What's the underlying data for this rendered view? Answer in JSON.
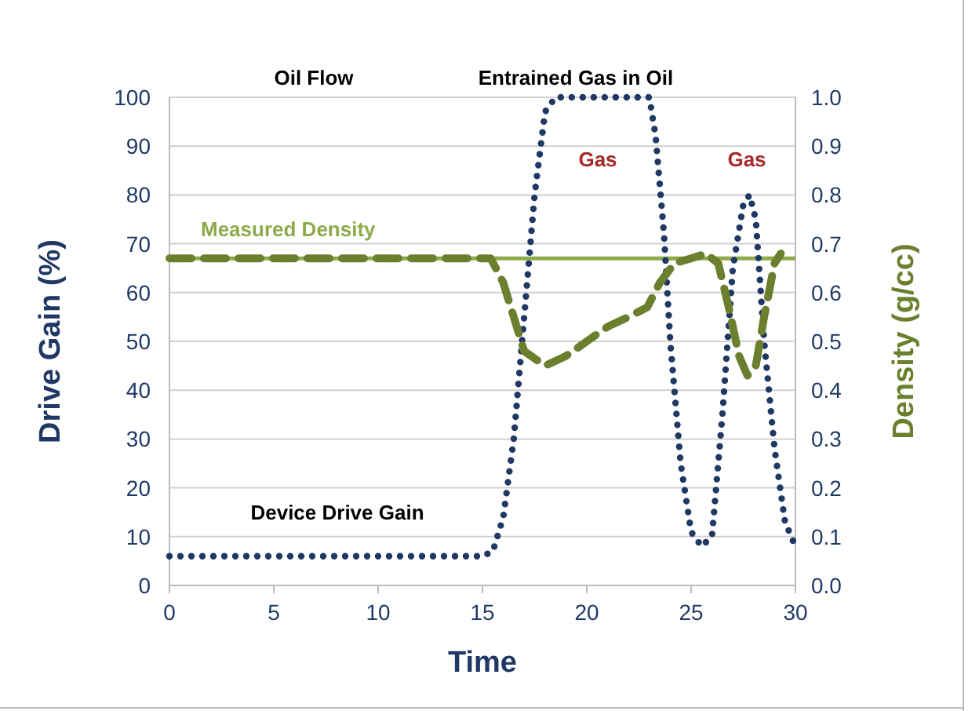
{
  "chart_data": {
    "type": "line",
    "xlabel": "Time",
    "ylabel": "Drive Gain (%)",
    "y2label": "Density (g/cc)",
    "xlim": [
      0,
      30
    ],
    "xticks": [
      0,
      5,
      10,
      15,
      20,
      25,
      30
    ],
    "ylim": [
      0,
      100
    ],
    "yticks": [
      0,
      10,
      20,
      30,
      40,
      50,
      60,
      70,
      80,
      90,
      100
    ],
    "y2lim": [
      0,
      1
    ],
    "y2ticks": [
      {
        "value": 0,
        "label": "0.0"
      },
      {
        "value": 0.1,
        "label": "0.1"
      },
      {
        "value": 0.2,
        "label": "0.2"
      },
      {
        "value": 0.3,
        "label": "0.3"
      },
      {
        "value": 0.4,
        "label": "0.4"
      },
      {
        "value": 0.5,
        "label": "0.5"
      },
      {
        "value": 0.6,
        "label": "0.6"
      },
      {
        "value": 0.7,
        "label": "0.7"
      },
      {
        "value": 0.8,
        "label": "0.8"
      },
      {
        "value": 0.9,
        "label": "0.9"
      },
      {
        "value": 1,
        "label": "1.0"
      }
    ],
    "grid": "y",
    "series": [
      {
        "color": "#1f3864",
        "line_style": "dotted",
        "x": [
          0,
          5,
          10,
          15,
          15.5,
          16,
          16.5,
          17,
          17.5,
          18,
          18.5,
          20,
          23,
          23.3,
          23.7,
          24,
          24.5,
          25,
          25.5,
          26,
          26.5,
          27,
          27.5,
          27.8,
          28.1,
          28.5,
          29,
          29.5,
          30
        ],
        "values": [
          6,
          6,
          6,
          6,
          7,
          14,
          30,
          55,
          80,
          97,
          100,
          100,
          100,
          92,
          72,
          50,
          25,
          11,
          8,
          10,
          35,
          65,
          78,
          80,
          75,
          50,
          28,
          13,
          8
        ]
      },
      {
        "color": "#6b7f2e",
        "line_style": "dashed",
        "axis": "y2",
        "x": [
          0,
          5,
          10,
          15.4,
          16,
          16.5,
          17,
          18,
          19,
          20,
          21,
          22,
          22.9,
          23.5,
          24.2,
          25,
          25.7,
          26.3,
          26.8,
          27.3,
          27.7,
          28.1,
          28.5,
          29,
          29.3
        ],
        "values": [
          0.67,
          0.67,
          0.67,
          0.67,
          0.62,
          0.55,
          0.48,
          0.45,
          0.47,
          0.5,
          0.53,
          0.55,
          0.57,
          0.62,
          0.66,
          0.67,
          0.68,
          0.66,
          0.57,
          0.47,
          0.43,
          0.45,
          0.55,
          0.66,
          0.68
        ]
      }
    ],
    "ref_lines": [
      {
        "axis": "y2",
        "value": 0.67,
        "label": "Measured Density",
        "color": "#8faa4a",
        "line_style": "solid"
      }
    ],
    "annotations": [
      "Oil Flow",
      "Entrained Gas in Oil",
      "Gas",
      "Gas",
      "Device Drive Gain"
    ]
  }
}
